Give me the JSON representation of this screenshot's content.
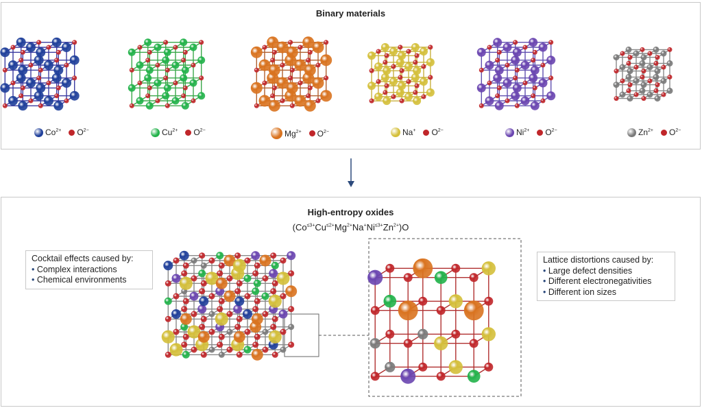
{
  "binary": {
    "title": "Binary materials",
    "materials": [
      {
        "cation": "Co",
        "charge": "2+",
        "anion": "O",
        "anion_charge": "2−",
        "color": "#1f3f9a"
      },
      {
        "cation": "Cu",
        "charge": "2+",
        "anion": "O",
        "anion_charge": "2−",
        "color": "#22b24a"
      },
      {
        "cation": "Mg",
        "charge": "2+",
        "anion": "O",
        "anion_charge": "2−",
        "color": "#d9731f"
      },
      {
        "cation": "Na",
        "charge": "+",
        "anion": "O",
        "anion_charge": "2−",
        "color": "#d4bf3a"
      },
      {
        "cation": "Ni",
        "charge": "2+",
        "anion": "O",
        "anion_charge": "2−",
        "color": "#6a45b0"
      },
      {
        "cation": "Zn",
        "charge": "2+",
        "anion": "O",
        "anion_charge": "2−",
        "color": "#7a7a7a"
      }
    ]
  },
  "heo": {
    "title": "High-entropy oxides",
    "formula": [
      {
        "el": "(Co",
        "sup": "≤3+"
      },
      {
        "el": "Cu",
        "sup": "≤2+"
      },
      {
        "el": "Mg",
        "sup": "2+"
      },
      {
        "el": "Na",
        "sup": "+"
      },
      {
        "el": "Ni",
        "sup": "≤3+"
      },
      {
        "el": "Zn",
        "sup": "2+"
      },
      {
        "el": ")O",
        "sup": ""
      }
    ],
    "cocktail": {
      "heading": "Cocktail effects caused by:",
      "items": [
        "Complex interactions",
        "Chemical environments"
      ]
    },
    "lattice": {
      "heading": "Lattice distortions caused by:",
      "items": [
        "Large defect densities",
        "Different electronegativities",
        "Different ion sizes"
      ]
    }
  },
  "colors": {
    "oxygen": "#c0262a",
    "arrow": "#2c4a7c"
  }
}
